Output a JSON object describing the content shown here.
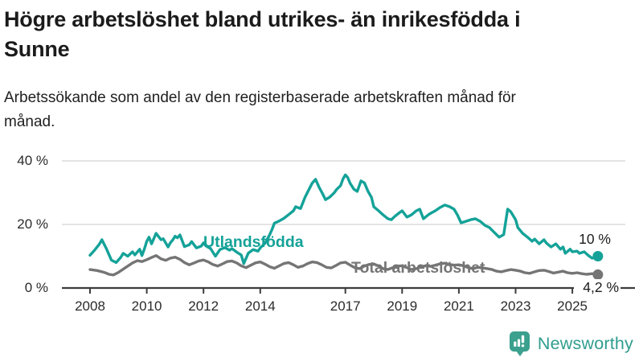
{
  "header": {
    "title": "Högre arbetslöshet bland utrikes- än inrikesfödda i Sunne",
    "subtitle": "Arbetssökande som andel av den registerbaserade arbetskraften månad för månad."
  },
  "chart_data": {
    "type": "line",
    "title": "Högre arbetslöshet bland utrikes- än inrikesfödda i Sunne",
    "subtitle": "Arbetssökande som andel av den registerbaserade arbetskraften månad för månad.",
    "unit": "%",
    "xlim": [
      2007.6,
      2026.2
    ],
    "ylim": [
      0,
      42
    ],
    "grid": "horizontal-only",
    "grid_color": "#dcdcdc",
    "axis_color": "#3d3d3d",
    "x_ticks": [
      2008,
      2010,
      2012,
      2014,
      2017,
      2019,
      2021,
      2023,
      2025
    ],
    "y_ticks": [
      {
        "value": 0,
        "label": "0 %"
      },
      {
        "value": 20,
        "label": "20 %"
      },
      {
        "value": 40,
        "label": "40 %"
      }
    ],
    "legend_position": "inline-labels-on-lines",
    "series": [
      {
        "name": "Utlandsfödda",
        "color": "#14a298",
        "end_value": 10,
        "end_label": "10 %",
        "points": [
          [
            2008.0,
            10.3
          ],
          [
            2008.17,
            12.0
          ],
          [
            2008.33,
            13.8
          ],
          [
            2008.42,
            15.2
          ],
          [
            2008.58,
            12.3
          ],
          [
            2008.75,
            8.8
          ],
          [
            2008.92,
            8.0
          ],
          [
            2009.08,
            9.6
          ],
          [
            2009.17,
            10.9
          ],
          [
            2009.33,
            10.0
          ],
          [
            2009.5,
            11.4
          ],
          [
            2009.58,
            10.4
          ],
          [
            2009.75,
            12.2
          ],
          [
            2009.83,
            10.2
          ],
          [
            2009.92,
            12.4
          ],
          [
            2010.0,
            14.7
          ],
          [
            2010.08,
            16.0
          ],
          [
            2010.17,
            13.9
          ],
          [
            2010.33,
            17.2
          ],
          [
            2010.5,
            15.2
          ],
          [
            2010.58,
            15.5
          ],
          [
            2010.75,
            12.9
          ],
          [
            2010.83,
            14.2
          ],
          [
            2010.92,
            15.2
          ],
          [
            2011.0,
            16.3
          ],
          [
            2011.08,
            15.8
          ],
          [
            2011.17,
            16.7
          ],
          [
            2011.33,
            13.0
          ],
          [
            2011.5,
            13.6
          ],
          [
            2011.58,
            14.6
          ],
          [
            2011.75,
            12.6
          ],
          [
            2011.92,
            13.2
          ],
          [
            2012.0,
            14.2
          ],
          [
            2012.08,
            13.3
          ],
          [
            2012.25,
            12.4
          ],
          [
            2012.42,
            10.0
          ],
          [
            2012.58,
            12.1
          ],
          [
            2012.75,
            12.7
          ],
          [
            2012.92,
            11.9
          ],
          [
            2013.0,
            12.4
          ],
          [
            2013.17,
            11.3
          ],
          [
            2013.33,
            10.4
          ],
          [
            2013.42,
            7.7
          ],
          [
            2013.58,
            11.0
          ],
          [
            2013.75,
            12.1
          ],
          [
            2013.92,
            11.6
          ],
          [
            2014.0,
            12.6
          ],
          [
            2014.17,
            14.1
          ],
          [
            2014.33,
            16.7
          ],
          [
            2014.42,
            18.5
          ],
          [
            2014.5,
            20.4
          ],
          [
            2014.67,
            21.1
          ],
          [
            2014.83,
            21.9
          ],
          [
            2015.0,
            23.1
          ],
          [
            2015.17,
            24.3
          ],
          [
            2015.25,
            25.6
          ],
          [
            2015.42,
            25.0
          ],
          [
            2015.58,
            28.6
          ],
          [
            2015.75,
            31.6
          ],
          [
            2015.83,
            33.0
          ],
          [
            2015.95,
            34.2
          ],
          [
            2016.08,
            31.6
          ],
          [
            2016.2,
            29.6
          ],
          [
            2016.3,
            27.8
          ],
          [
            2016.45,
            28.6
          ],
          [
            2016.6,
            29.9
          ],
          [
            2016.7,
            31.1
          ],
          [
            2016.83,
            32.2
          ],
          [
            2016.92,
            34.4
          ],
          [
            2017.0,
            35.6
          ],
          [
            2017.08,
            34.8
          ],
          [
            2017.17,
            32.9
          ],
          [
            2017.3,
            31.1
          ],
          [
            2017.42,
            30.4
          ],
          [
            2017.55,
            33.7
          ],
          [
            2017.67,
            33.1
          ],
          [
            2017.8,
            30.4
          ],
          [
            2017.92,
            28.5
          ],
          [
            2018.0,
            25.6
          ],
          [
            2018.17,
            24.3
          ],
          [
            2018.33,
            23.0
          ],
          [
            2018.5,
            21.8
          ],
          [
            2018.62,
            21.5
          ],
          [
            2018.75,
            22.6
          ],
          [
            2018.92,
            23.8
          ],
          [
            2019.0,
            24.3
          ],
          [
            2019.17,
            22.3
          ],
          [
            2019.33,
            23.0
          ],
          [
            2019.5,
            24.3
          ],
          [
            2019.62,
            24.8
          ],
          [
            2019.75,
            21.8
          ],
          [
            2019.92,
            23.0
          ],
          [
            2020.0,
            23.5
          ],
          [
            2020.17,
            24.3
          ],
          [
            2020.33,
            25.3
          ],
          [
            2020.5,
            26.1
          ],
          [
            2020.67,
            25.6
          ],
          [
            2020.83,
            24.8
          ],
          [
            2020.95,
            23.0
          ],
          [
            2021.08,
            20.5
          ],
          [
            2021.25,
            21.0
          ],
          [
            2021.42,
            21.5
          ],
          [
            2021.58,
            21.8
          ],
          [
            2021.75,
            21.0
          ],
          [
            2021.92,
            19.7
          ],
          [
            2022.08,
            19.0
          ],
          [
            2022.25,
            17.5
          ],
          [
            2022.42,
            16.0
          ],
          [
            2022.58,
            16.8
          ],
          [
            2022.72,
            24.8
          ],
          [
            2022.83,
            24.0
          ],
          [
            2023.0,
            21.5
          ],
          [
            2023.08,
            19.0
          ],
          [
            2023.25,
            17.2
          ],
          [
            2023.42,
            16.0
          ],
          [
            2023.58,
            14.7
          ],
          [
            2023.67,
            15.4
          ],
          [
            2023.83,
            13.9
          ],
          [
            2024.0,
            15.2
          ],
          [
            2024.08,
            14.2
          ],
          [
            2024.25,
            12.9
          ],
          [
            2024.42,
            13.9
          ],
          [
            2024.58,
            12.2
          ],
          [
            2024.67,
            12.9
          ],
          [
            2024.75,
            10.9
          ],
          [
            2024.92,
            12.2
          ],
          [
            2025.0,
            11.4
          ],
          [
            2025.17,
            11.6
          ],
          [
            2025.25,
            10.9
          ],
          [
            2025.42,
            11.4
          ],
          [
            2025.58,
            10.1
          ],
          [
            2025.7,
            9.4
          ],
          [
            2025.83,
            9.7
          ],
          [
            2025.9,
            10.0
          ]
        ]
      },
      {
        "name": "Total arbetslöshet",
        "color": "#757575",
        "end_value": 4.2,
        "end_label": "4,2 %",
        "points": [
          [
            2008.0,
            5.8
          ],
          [
            2008.25,
            5.5
          ],
          [
            2008.5,
            4.9
          ],
          [
            2008.67,
            4.3
          ],
          [
            2008.83,
            4.1
          ],
          [
            2009.0,
            4.9
          ],
          [
            2009.25,
            6.4
          ],
          [
            2009.5,
            7.9
          ],
          [
            2009.67,
            8.6
          ],
          [
            2009.83,
            8.3
          ],
          [
            2010.0,
            8.9
          ],
          [
            2010.17,
            9.6
          ],
          [
            2010.33,
            10.2
          ],
          [
            2010.5,
            9.2
          ],
          [
            2010.67,
            8.7
          ],
          [
            2010.83,
            9.4
          ],
          [
            2011.0,
            9.7
          ],
          [
            2011.17,
            9.0
          ],
          [
            2011.33,
            8.0
          ],
          [
            2011.5,
            7.3
          ],
          [
            2011.67,
            7.9
          ],
          [
            2011.83,
            8.5
          ],
          [
            2012.0,
            8.8
          ],
          [
            2012.17,
            8.2
          ],
          [
            2012.33,
            7.4
          ],
          [
            2012.5,
            6.9
          ],
          [
            2012.67,
            7.6
          ],
          [
            2012.83,
            8.3
          ],
          [
            2013.0,
            8.5
          ],
          [
            2013.17,
            7.9
          ],
          [
            2013.33,
            7.0
          ],
          [
            2013.5,
            6.4
          ],
          [
            2013.67,
            7.2
          ],
          [
            2013.83,
            7.9
          ],
          [
            2014.0,
            8.2
          ],
          [
            2014.17,
            7.5
          ],
          [
            2014.33,
            6.7
          ],
          [
            2014.5,
            6.2
          ],
          [
            2014.67,
            7.0
          ],
          [
            2014.83,
            7.7
          ],
          [
            2015.0,
            8.0
          ],
          [
            2015.17,
            7.3
          ],
          [
            2015.33,
            6.5
          ],
          [
            2015.5,
            6.9
          ],
          [
            2015.67,
            7.7
          ],
          [
            2015.83,
            8.2
          ],
          [
            2016.0,
            8.0
          ],
          [
            2016.17,
            7.3
          ],
          [
            2016.33,
            6.5
          ],
          [
            2016.5,
            6.3
          ],
          [
            2016.67,
            7.1
          ],
          [
            2016.83,
            7.9
          ],
          [
            2017.0,
            8.1
          ],
          [
            2017.17,
            7.2
          ],
          [
            2017.33,
            6.4
          ],
          [
            2017.5,
            6.1
          ],
          [
            2017.67,
            6.9
          ],
          [
            2017.83,
            7.4
          ],
          [
            2018.0,
            7.6
          ],
          [
            2018.17,
            6.9
          ],
          [
            2018.33,
            6.1
          ],
          [
            2018.5,
            5.8
          ],
          [
            2018.67,
            6.4
          ],
          [
            2018.83,
            6.9
          ],
          [
            2019.0,
            7.0
          ],
          [
            2019.17,
            6.4
          ],
          [
            2019.33,
            5.8
          ],
          [
            2019.5,
            6.1
          ],
          [
            2019.67,
            6.7
          ],
          [
            2019.83,
            7.0
          ],
          [
            2020.0,
            6.8
          ],
          [
            2020.17,
            7.2
          ],
          [
            2020.33,
            7.6
          ],
          [
            2020.5,
            7.8
          ],
          [
            2020.67,
            7.4
          ],
          [
            2020.83,
            7.2
          ],
          [
            2021.0,
            7.3
          ],
          [
            2021.17,
            7.0
          ],
          [
            2021.33,
            6.4
          ],
          [
            2021.5,
            6.1
          ],
          [
            2021.67,
            6.5
          ],
          [
            2021.83,
            6.3
          ],
          [
            2022.0,
            6.1
          ],
          [
            2022.17,
            5.8
          ],
          [
            2022.33,
            5.3
          ],
          [
            2022.5,
            5.1
          ],
          [
            2022.67,
            5.5
          ],
          [
            2022.83,
            5.8
          ],
          [
            2023.0,
            5.6
          ],
          [
            2023.17,
            5.3
          ],
          [
            2023.33,
            4.8
          ],
          [
            2023.5,
            4.6
          ],
          [
            2023.67,
            5.1
          ],
          [
            2023.83,
            5.5
          ],
          [
            2024.0,
            5.6
          ],
          [
            2024.17,
            5.2
          ],
          [
            2024.33,
            4.7
          ],
          [
            2024.5,
            5.0
          ],
          [
            2024.67,
            5.3
          ],
          [
            2024.83,
            4.8
          ],
          [
            2025.0,
            4.6
          ],
          [
            2025.17,
            4.8
          ],
          [
            2025.33,
            4.5
          ],
          [
            2025.5,
            4.3
          ],
          [
            2025.7,
            4.5
          ],
          [
            2025.9,
            4.2
          ]
        ]
      }
    ]
  },
  "footer": {
    "brand": "Newsworthy",
    "brand_text_color": "#2f9d8e",
    "brand_icon_color": "#3ba08e"
  }
}
